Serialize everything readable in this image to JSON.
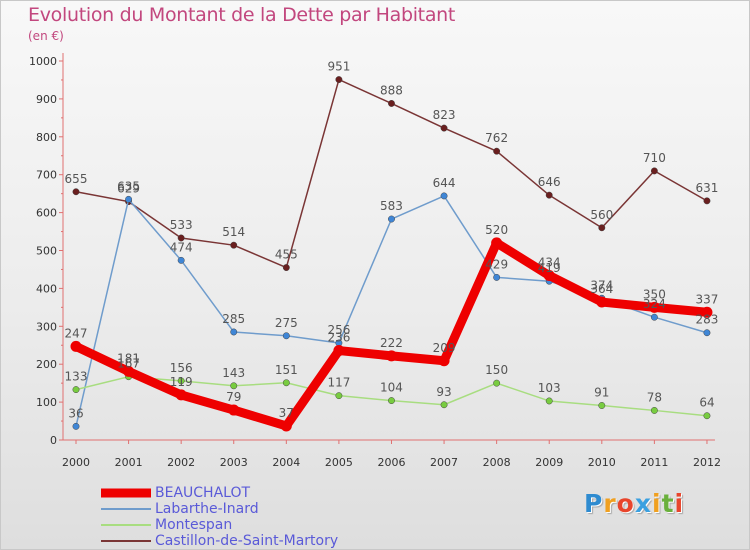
{
  "title": "Evolution du Montant de la Dette par Habitant",
  "unit": "(en €)",
  "logo": {
    "letters": [
      "P",
      "r",
      "o",
      "x",
      "i",
      "t",
      "i"
    ],
    "colors": [
      "#2e8bd0",
      "#f0a020",
      "#e8452c",
      "#3aa0e0",
      "#f0a020",
      "#6ab03c",
      "#e8452c"
    ]
  },
  "chart_data": {
    "type": "line",
    "title": "Evolution du Montant de la Dette par Habitant",
    "ylabel": "(en €)",
    "xlabel": "",
    "x": [
      "2000",
      "2001",
      "2002",
      "2003",
      "2004",
      "2005",
      "2006",
      "2007",
      "2008",
      "2009",
      "2010",
      "2011",
      "2012"
    ],
    "ylim": [
      0,
      1000
    ],
    "yticks": [
      0,
      100,
      200,
      300,
      400,
      500,
      600,
      700,
      800,
      900,
      1000
    ],
    "grid": false,
    "legend_position": "bottom-left",
    "series": [
      {
        "name": "BEAUCHALOT",
        "color": "#ee0000",
        "dot": "#ee0000",
        "width": 9,
        "values": [
          247,
          181,
          119,
          79,
          37,
          236,
          222,
          209,
          520,
          434,
          364,
          350,
          337
        ],
        "labels": [
          "247",
          "181",
          "119",
          "79",
          "37",
          "236",
          "222",
          "209",
          "520",
          "434",
          "364",
          "350",
          "337"
        ]
      },
      {
        "name": "Labarthe-Inard",
        "color": "#6f9ccc",
        "dot": "#3f86d6",
        "width": 1.5,
        "values": [
          36,
          635,
          474,
          285,
          275,
          256,
          583,
          644,
          429,
          419,
          374,
          324,
          283
        ],
        "labels": [
          "36",
          "635",
          "474",
          "285",
          "275",
          "256",
          "583",
          "644",
          "429",
          "419",
          "374",
          "324",
          "283"
        ]
      },
      {
        "name": "Montespan",
        "color": "#a8dd80",
        "dot": "#78cc40",
        "width": 1.5,
        "values": [
          133,
          167,
          156,
          143,
          151,
          117,
          104,
          93,
          150,
          103,
          91,
          78,
          64
        ],
        "labels": [
          "133",
          "167",
          "156",
          "143",
          "151",
          "117",
          "104",
          "93",
          "150",
          "103",
          "91",
          "78",
          "64"
        ]
      },
      {
        "name": "Castillon-de-Saint-Martory",
        "color": "#7a3535",
        "dot": "#6a1f1f",
        "width": 1.5,
        "values": [
          655,
          629,
          533,
          514,
          455,
          951,
          888,
          823,
          762,
          646,
          560,
          710,
          631
        ],
        "labels": [
          "655",
          "629",
          "533",
          "514",
          "455",
          "951",
          "888",
          "823",
          "762",
          "646",
          "560",
          "710",
          "631"
        ]
      }
    ]
  }
}
